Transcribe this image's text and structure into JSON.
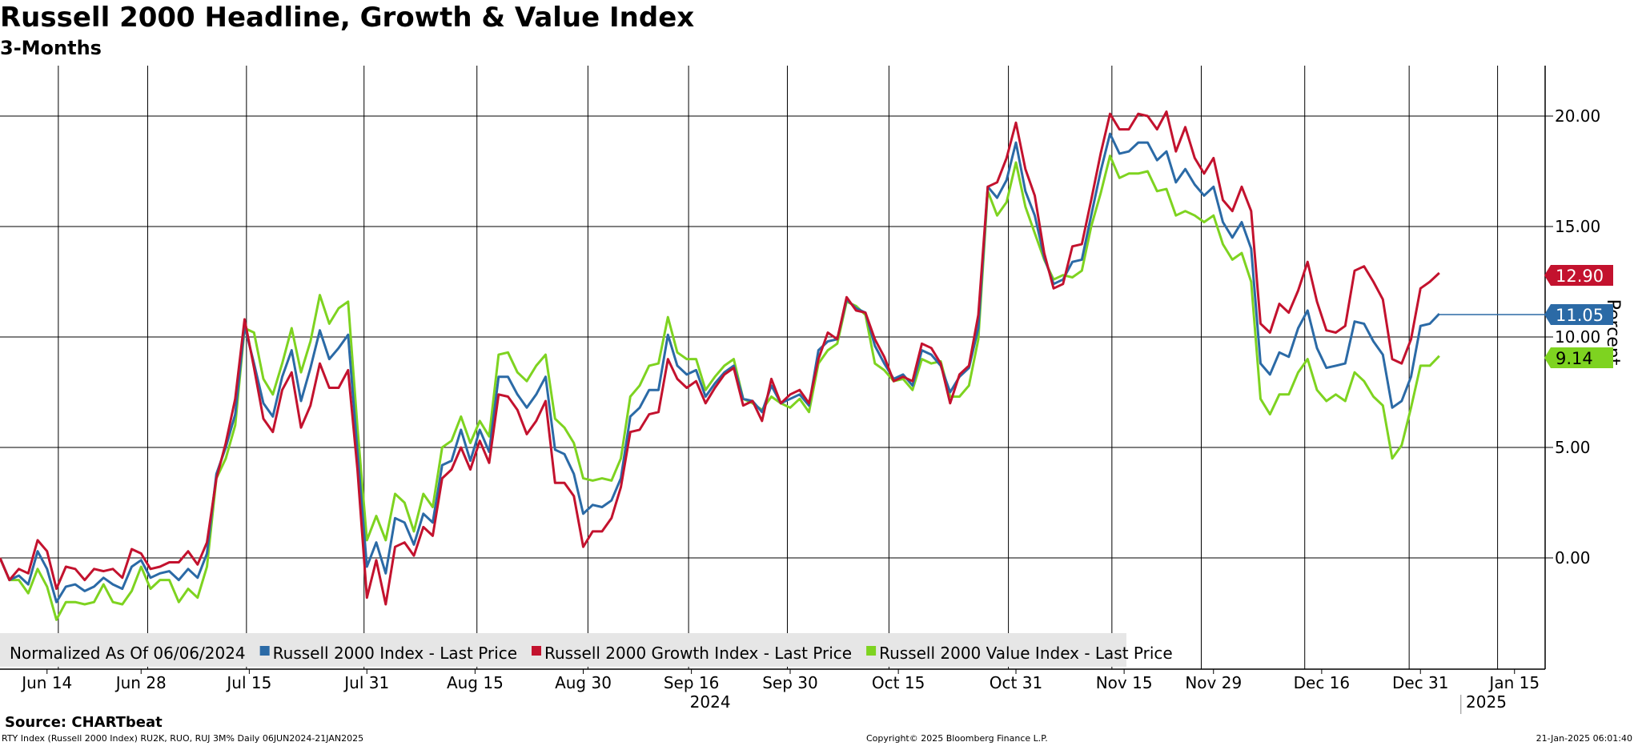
{
  "header": {
    "title": "Russell 2000 Headline, Growth & Value Index",
    "subtitle": "3-Months"
  },
  "footer": {
    "source": "Source: CHARTbeat",
    "tickers": "RTY Index (Russell 2000 Index) RU2K, RUO, RUJ 3M%  Daily 06JUN2024-21JAN2025",
    "copyright": "Copyright© 2025 Bloomberg Finance L.P.",
    "timestamp": "21-Jan-2025 06:01:40"
  },
  "colors": {
    "headline": "#2b6aa6",
    "growth": "#c3122e",
    "value": "#7ed320",
    "grid": "#000000",
    "legend_bg": "#e6e6e6"
  },
  "chart_data": {
    "type": "line",
    "ylabel": "Percent",
    "ylim": [
      -5,
      22.5
    ],
    "yticks": [
      0,
      5,
      10,
      15,
      20
    ],
    "ytick_labels": [
      "0.00",
      "5.00",
      "10.00",
      "15.00",
      "20.00"
    ],
    "xlim": [
      0,
      165
    ],
    "grid": true,
    "legend_position": "bottom-left",
    "legend_prefix": "Normalized As Of 06/06/2024",
    "xtick_labels": [
      {
        "label": "Jun 14",
        "x": 5
      },
      {
        "label": "Jun 28",
        "x": 15
      },
      {
        "label": "Jul 15",
        "x": 26.5
      },
      {
        "label": "Jul 31",
        "x": 39
      },
      {
        "label": "Aug 15",
        "x": 50.5
      },
      {
        "label": "Aug 30",
        "x": 62
      },
      {
        "label": "Sep 16",
        "x": 73.5
      },
      {
        "label": "Sep 30",
        "x": 84
      },
      {
        "label": "Oct 15",
        "x": 95.5
      },
      {
        "label": "Oct 31",
        "x": 108
      },
      {
        "label": "Nov 15",
        "x": 119.5
      },
      {
        "label": "Nov 29",
        "x": 129
      },
      {
        "label": "Dec 16",
        "x": 140.5
      },
      {
        "label": "Dec 31",
        "x": 151
      },
      {
        "label": "Jan 15",
        "x": 161
      }
    ],
    "year_labels": [
      {
        "label": "2024",
        "x": 75.5
      },
      {
        "label": "2025",
        "x": 158
      }
    ],
    "vertical_gridlines_x": [
      6.2,
      15.7,
      26.2,
      38.7,
      50.7,
      62.5,
      73.2,
      83.7,
      94.5,
      107.2,
      118.2,
      127.7,
      138.7,
      149.8,
      159.2
    ],
    "series": [
      {
        "name": "Russell 2000 Index - Last Price",
        "key": "headline",
        "last_value_label": "11.05",
        "last_value": 11.05,
        "values": [
          0.0,
          -1.0,
          -0.8,
          -1.2,
          0.3,
          -0.5,
          -2.0,
          -1.3,
          -1.2,
          -1.5,
          -1.3,
          -0.9,
          -1.2,
          -1.4,
          -0.4,
          -0.1,
          -0.9,
          -0.7,
          -0.6,
          -1.0,
          -0.5,
          -0.9,
          0.2,
          3.8,
          5.0,
          6.5,
          10.5,
          8.8,
          7.0,
          6.4,
          8.2,
          9.4,
          7.1,
          8.6,
          10.3,
          9.0,
          9.5,
          10.1,
          4.8,
          -0.4,
          0.7,
          -0.7,
          1.8,
          1.6,
          0.6,
          2.0,
          1.6,
          4.2,
          4.4,
          5.8,
          4.4,
          5.8,
          4.8,
          8.2,
          8.2,
          7.4,
          6.8,
          7.4,
          8.2,
          4.9,
          4.7,
          3.8,
          2.0,
          2.4,
          2.3,
          2.6,
          3.6,
          6.4,
          6.8,
          7.6,
          7.6,
          10.1,
          8.7,
          8.3,
          8.5,
          7.3,
          7.9,
          8.4,
          8.7,
          7.2,
          7.1,
          6.6,
          7.8,
          7.0,
          7.2,
          7.4,
          6.9,
          9.4,
          9.8,
          9.9,
          11.7,
          11.3,
          11.1,
          9.6,
          8.8,
          8.1,
          8.3,
          7.8,
          9.4,
          9.2,
          8.7,
          7.5,
          8.2,
          8.6,
          10.4,
          16.8,
          16.3,
          17.1,
          18.8,
          16.6,
          15.5,
          13.6,
          12.4,
          12.6,
          13.4,
          13.5,
          15.5,
          17.5,
          19.2,
          18.3,
          18.4,
          18.8,
          18.8,
          18.0,
          18.4,
          17.0,
          17.6,
          16.9,
          16.4,
          16.8,
          15.2,
          14.5,
          15.2,
          14.0,
          8.8,
          8.3,
          9.3,
          9.1,
          10.4,
          11.2,
          9.5,
          8.6,
          8.7,
          8.8,
          10.7,
          10.6,
          9.8,
          9.2,
          6.8,
          7.1,
          8.2,
          10.5,
          10.6,
          11.05
        ]
      },
      {
        "name": "Russell 2000 Growth Index - Last Price",
        "key": "growth",
        "last_value_label": "12.90",
        "last_value": 12.9,
        "values": [
          0.0,
          -1.0,
          -0.5,
          -0.7,
          0.8,
          0.3,
          -1.4,
          -0.4,
          -0.5,
          -1.0,
          -0.5,
          -0.6,
          -0.5,
          -0.9,
          0.4,
          0.2,
          -0.5,
          -0.4,
          -0.2,
          -0.2,
          0.3,
          -0.3,
          0.7,
          3.6,
          5.2,
          7.2,
          10.8,
          8.6,
          6.3,
          5.7,
          7.6,
          8.4,
          5.9,
          6.9,
          8.8,
          7.7,
          7.7,
          8.5,
          4.0,
          -1.8,
          -0.1,
          -2.1,
          0.5,
          0.7,
          0.1,
          1.4,
          1.0,
          3.6,
          4.0,
          5.0,
          4.0,
          5.3,
          4.3,
          7.4,
          7.3,
          6.7,
          5.6,
          6.2,
          7.1,
          3.4,
          3.4,
          2.8,
          0.5,
          1.2,
          1.2,
          1.8,
          3.2,
          5.7,
          5.8,
          6.5,
          6.6,
          9.0,
          8.1,
          7.7,
          8.0,
          7.0,
          7.7,
          8.3,
          8.6,
          6.9,
          7.1,
          6.2,
          8.1,
          7.0,
          7.4,
          7.6,
          7.0,
          9.0,
          10.2,
          9.9,
          11.8,
          11.2,
          11.1,
          9.9,
          9.1,
          8.0,
          8.2,
          8.0,
          9.7,
          9.5,
          8.8,
          7.0,
          8.3,
          8.7,
          11.0,
          16.8,
          17.0,
          18.1,
          19.7,
          17.6,
          16.4,
          13.8,
          12.2,
          12.4,
          14.1,
          14.2,
          16.2,
          18.3,
          20.1,
          19.4,
          19.4,
          20.1,
          20.0,
          19.4,
          20.2,
          18.4,
          19.5,
          18.1,
          17.4,
          18.1,
          16.2,
          15.7,
          16.8,
          15.7,
          10.6,
          10.2,
          11.5,
          11.1,
          12.1,
          13.4,
          11.6,
          10.3,
          10.2,
          10.5,
          13.0,
          13.2,
          12.5,
          11.7,
          9.0,
          8.8,
          9.9,
          12.2,
          12.5,
          12.9
        ]
      },
      {
        "name": "Russell 2000 Value Index - Last Price",
        "key": "value",
        "last_value_label": "9.14",
        "last_value": 9.14,
        "values": [
          0.0,
          -1.0,
          -1.0,
          -1.6,
          -0.5,
          -1.3,
          -2.8,
          -2.0,
          -2.0,
          -2.1,
          -2.0,
          -1.2,
          -2.0,
          -2.1,
          -1.5,
          -0.4,
          -1.4,
          -1.0,
          -1.0,
          -2.0,
          -1.4,
          -1.8,
          -0.4,
          3.6,
          4.5,
          6.0,
          10.4,
          10.2,
          8.1,
          7.4,
          8.8,
          10.4,
          8.4,
          9.8,
          11.9,
          10.6,
          11.3,
          11.6,
          5.9,
          0.8,
          1.9,
          0.8,
          2.9,
          2.5,
          1.2,
          2.9,
          2.3,
          5.0,
          5.3,
          6.4,
          5.2,
          6.2,
          5.5,
          9.2,
          9.3,
          8.4,
          8.0,
          8.7,
          9.2,
          6.3,
          5.9,
          5.2,
          3.6,
          3.5,
          3.6,
          3.5,
          4.5,
          7.3,
          7.8,
          8.7,
          8.8,
          10.9,
          9.3,
          9.0,
          9.0,
          7.6,
          8.2,
          8.7,
          9.0,
          7.2,
          7.0,
          6.7,
          7.3,
          7.0,
          6.8,
          7.2,
          6.6,
          8.8,
          9.4,
          9.7,
          11.6,
          11.4,
          11.0,
          8.8,
          8.5,
          8.0,
          8.1,
          7.6,
          9.0,
          8.8,
          8.9,
          7.3,
          7.3,
          7.8,
          9.9,
          16.6,
          15.5,
          16.1,
          17.9,
          15.9,
          14.7,
          13.5,
          12.6,
          12.8,
          12.7,
          13.0,
          15.0,
          16.5,
          18.2,
          17.2,
          17.4,
          17.4,
          17.5,
          16.6,
          16.7,
          15.5,
          15.7,
          15.5,
          15.2,
          15.5,
          14.2,
          13.5,
          13.8,
          12.5,
          7.2,
          6.5,
          7.4,
          7.4,
          8.4,
          9.0,
          7.6,
          7.1,
          7.4,
          7.1,
          8.4,
          8.0,
          7.3,
          6.9,
          4.5,
          5.1,
          6.8,
          8.7,
          8.7,
          9.14
        ]
      }
    ]
  }
}
